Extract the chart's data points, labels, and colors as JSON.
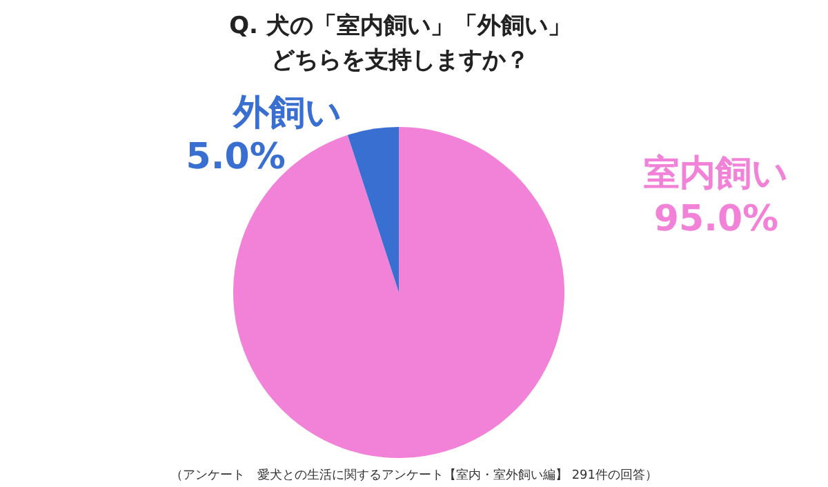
{
  "chart_data": {
    "type": "pie",
    "title": "Q.  犬の「室内飼い」「外飼い」",
    "subtitle": "どちらを支持しますか？",
    "categories": [
      "室内飼い",
      "外飼い"
    ],
    "values": [
      95.0,
      5.0
    ],
    "value_labels": [
      "95.0%",
      "5.0%"
    ],
    "colors": [
      "#f281d8",
      "#3a6fd2"
    ],
    "annotations": [
      "（アンケート　愛犬との生活に関するアンケート【室内・室外飼い編】 291件の回答）"
    ]
  }
}
